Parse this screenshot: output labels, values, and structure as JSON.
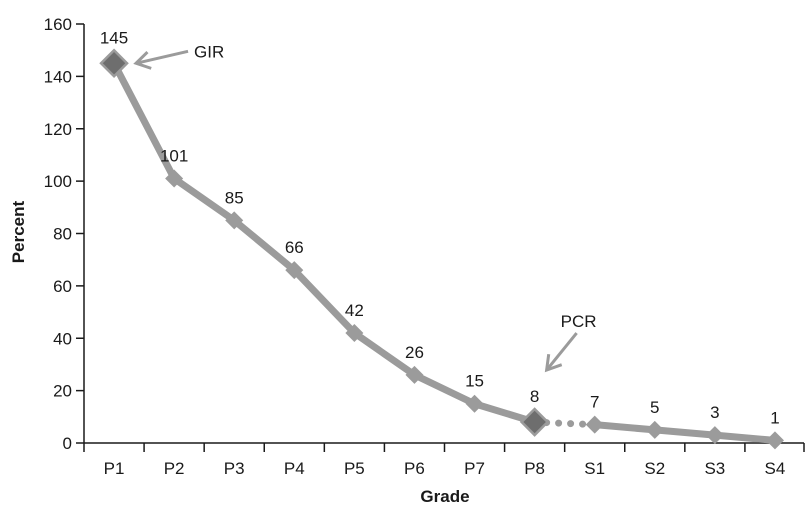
{
  "chart_data": {
    "type": "line",
    "title": "",
    "xlabel": "Grade",
    "ylabel": "Percent",
    "categories": [
      "P1",
      "P2",
      "P3",
      "P4",
      "P5",
      "P6",
      "P7",
      "P8",
      "S1",
      "S2",
      "S3",
      "S4"
    ],
    "series": [
      {
        "values": [
          145,
          101,
          85,
          66,
          42,
          26,
          15,
          8,
          7,
          5,
          3,
          1
        ]
      }
    ],
    "data_labels": [
      "145",
      "101",
      "85",
      "66",
      "42",
      "26",
      "15",
      "8",
      "7",
      "5",
      "3",
      "1"
    ],
    "ylim": [
      0,
      160
    ],
    "yticks": [
      0,
      20,
      40,
      60,
      80,
      100,
      120,
      140,
      160
    ],
    "ytick_labels": [
      "0",
      "20",
      "40",
      "60",
      "80",
      "100",
      "120",
      "140",
      "160"
    ],
    "grid": false,
    "legend": "none",
    "dotted_segment": [
      "P8",
      "S1"
    ],
    "highlighted_points": [
      "P1",
      "P8"
    ],
    "annotations": [
      {
        "text": "GIR",
        "target": "P1"
      },
      {
        "text": "PCR",
        "target": "P8"
      }
    ],
    "colors": {
      "line": "#9b9b9b",
      "marker": "#9b9b9b",
      "highlight_marker": "#6e6e6e",
      "axis": "#1a1a1a",
      "arrow": "#9b9b9b"
    }
  }
}
